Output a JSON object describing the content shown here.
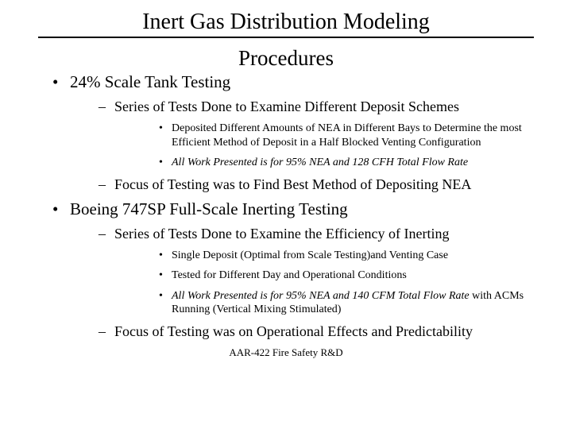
{
  "title": "Inert Gas Distribution Modeling",
  "subtitle": "Procedures",
  "footer": "AAR-422 Fire Safety R&D",
  "bullets": {
    "l1_0": "24% Scale Tank Testing",
    "l1_1": "Boeing 747SP Full-Scale Inerting Testing",
    "l2_0": "Series of Tests Done to Examine Different Deposit Schemes",
    "l2_1": "Focus of Testing was to Find Best Method of Depositing NEA",
    "l2_2": "Series of Tests Done to Examine the Efficiency of Inerting",
    "l2_3": "Focus of Testing was on Operational Effects and Predictability",
    "l3_0": "Deposited Different Amounts of NEA in Different Bays to Determine the most Efficient Method of Deposit in a Half Blocked Venting Configuration",
    "l3_1": "All Work Presented is for 95% NEA and 128 CFH Total Flow Rate",
    "l3_2": "Single Deposit (Optimal from Scale Testing)and Venting Case",
    "l3_3": "Tested for Different Day and Operational Conditions",
    "l3_4_italic": "All Work Presented is for 95% NEA and 140 CFM Total Flow Rate",
    "l3_4_rest": " with ACMs Running (Vertical Mixing Stimulated)"
  }
}
